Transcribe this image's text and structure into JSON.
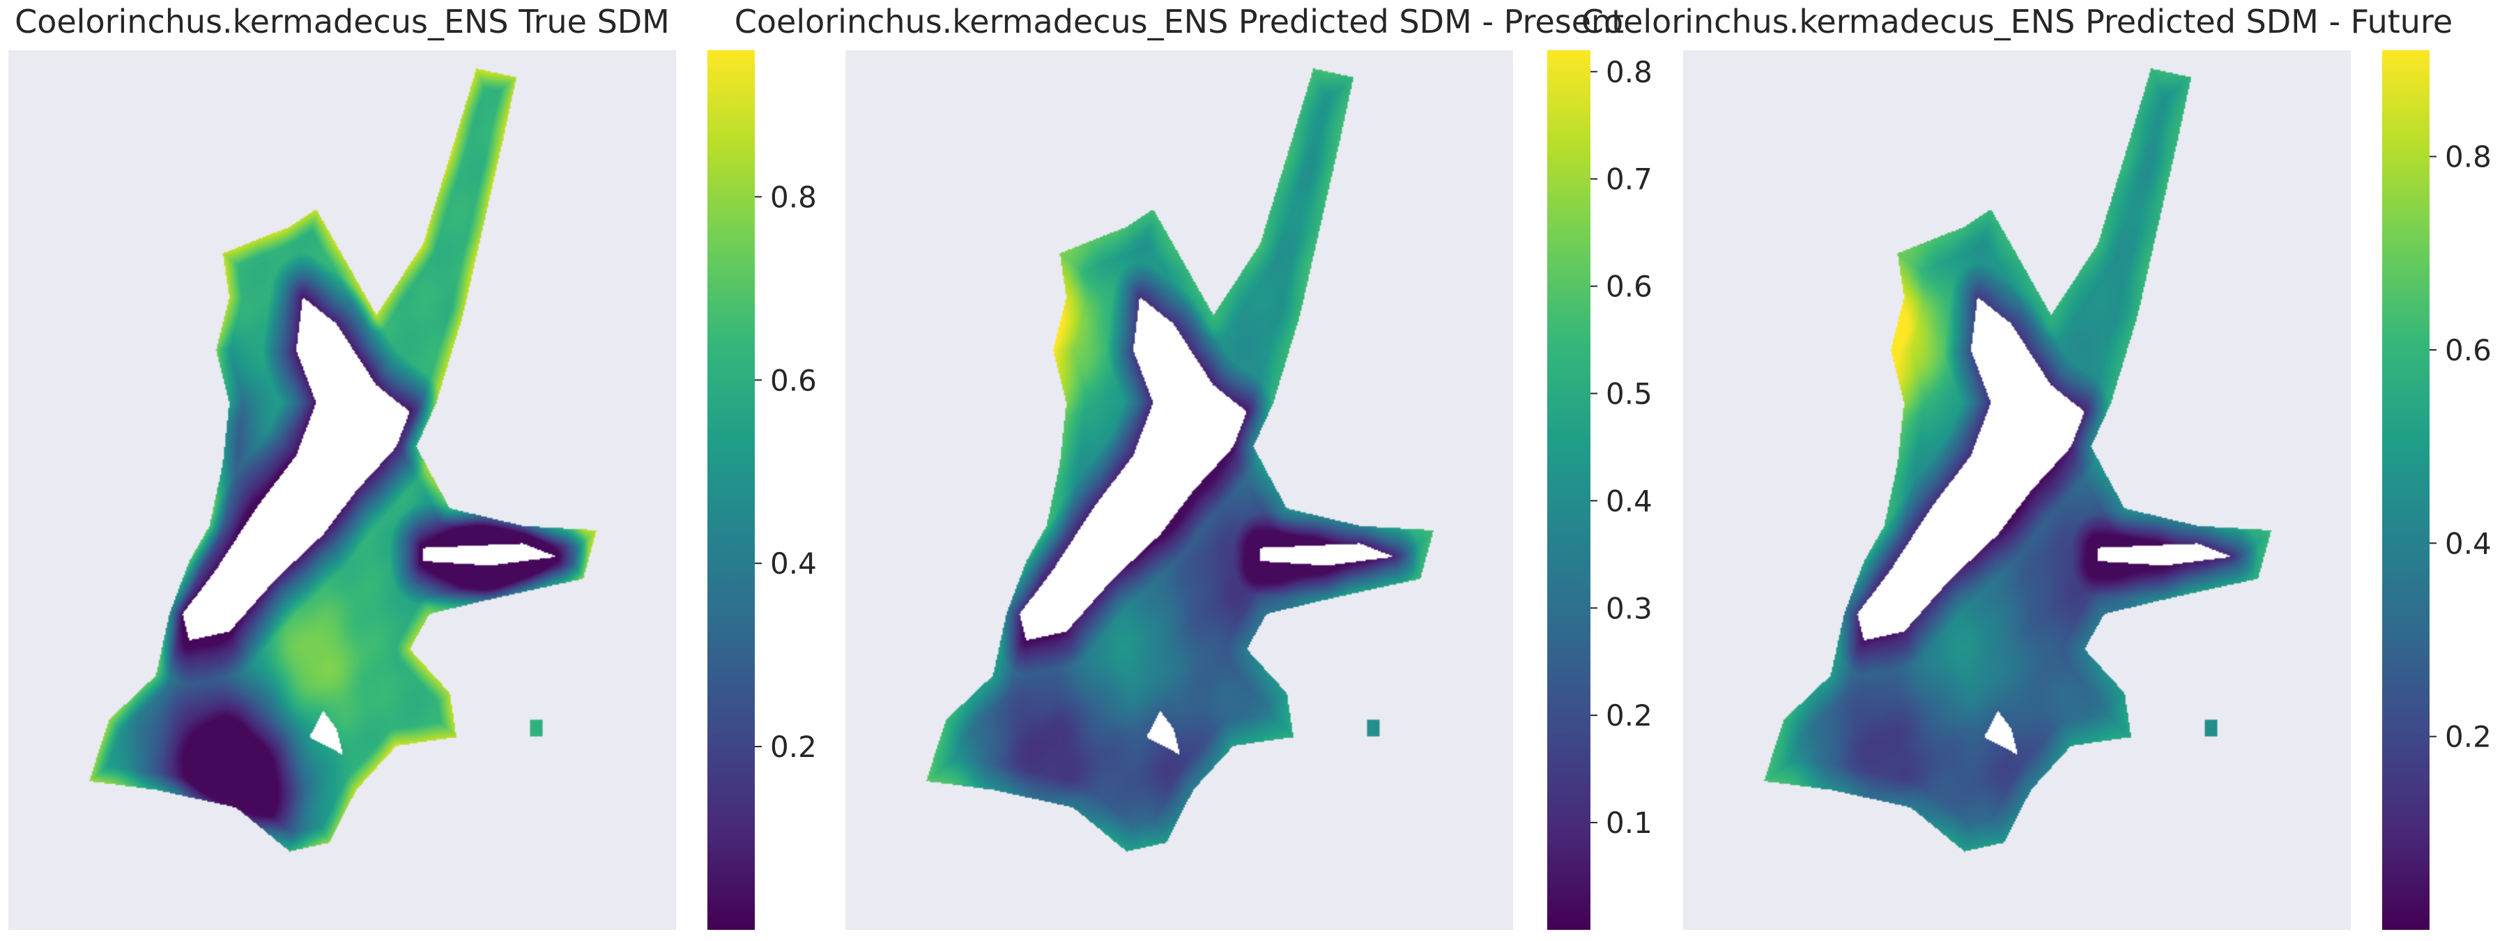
{
  "figure": {
    "background": "#ffffff",
    "panel_background": "#eaeaf2",
    "colormap": "viridis",
    "colormap_stops": [
      "#440154",
      "#482878",
      "#3e4989",
      "#31688e",
      "#26828e",
      "#1f9e89",
      "#35b779",
      "#6ece58",
      "#b5de2b",
      "#fde725"
    ]
  },
  "chart_data": [
    {
      "type": "heatmap",
      "title": "Coelorinchus.kermadecus_ENS True SDM",
      "grid": false,
      "colorbar": {
        "range": [
          0.0,
          0.96
        ],
        "ticks": [
          0.2,
          0.4,
          0.6,
          0.8
        ]
      },
      "field": {
        "mode": "true"
      }
    },
    {
      "type": "heatmap",
      "title": "Coelorinchus.kermadecus_ENS Predicted SDM - Present",
      "grid": false,
      "colorbar": {
        "range": [
          0.0,
          0.82
        ],
        "ticks": [
          0.1,
          0.2,
          0.3,
          0.4,
          0.5,
          0.6,
          0.7,
          0.8
        ]
      },
      "field": {
        "mode": "present"
      }
    },
    {
      "type": "heatmap",
      "title": "Coelorinchus.kermadecus_ENS Predicted SDM - Future",
      "grid": false,
      "colorbar": {
        "range": [
          0.0,
          0.91
        ],
        "ticks": [
          0.2,
          0.4,
          0.6,
          0.8
        ]
      },
      "field": {
        "mode": "future"
      }
    }
  ]
}
